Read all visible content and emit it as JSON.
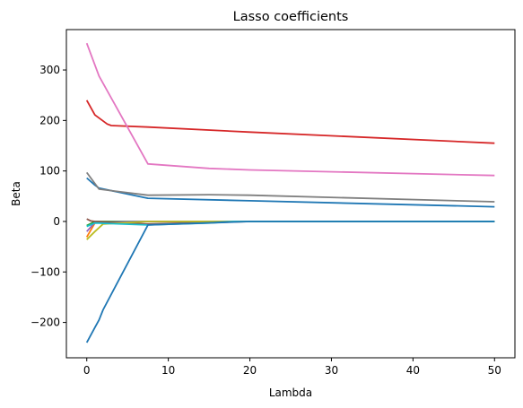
{
  "chart_data": {
    "type": "line",
    "title": "Lasso coefficients",
    "xlabel": "Lambda",
    "ylabel": "Beta",
    "xlim": [
      -2.5,
      52.5
    ],
    "ylim": [
      -270,
      380
    ],
    "xticks": [
      0,
      10,
      20,
      30,
      40,
      50
    ],
    "yticks": [
      -200,
      -100,
      0,
      100,
      200,
      300
    ],
    "grid": false,
    "legend": "none",
    "series": [
      {
        "color": "#1f77b4",
        "x": [
          0,
          1,
          1.5,
          7.5,
          20,
          50
        ],
        "y": [
          86,
          72,
          66,
          46,
          41,
          29
        ]
      },
      {
        "color": "#ff7f0e",
        "x": [
          0,
          1,
          7.5,
          20,
          50
        ],
        "y": [
          -31,
          -3,
          0,
          0,
          0
        ]
      },
      {
        "color": "#2ca02c",
        "x": [
          0,
          1,
          7.5,
          20,
          50
        ],
        "y": [
          -8,
          0,
          0,
          0,
          0
        ]
      },
      {
        "color": "#d62728",
        "x": [
          0,
          1,
          2.5,
          3,
          7.5,
          20,
          50
        ],
        "y": [
          240,
          211,
          193,
          190,
          187,
          177,
          155
        ]
      },
      {
        "color": "#9467bd",
        "x": [
          0,
          1,
          7.5,
          20,
          50
        ],
        "y": [
          -20,
          -2,
          0,
          0,
          0
        ]
      },
      {
        "color": "#8c564b",
        "x": [
          0,
          0.5,
          1,
          7.5,
          20,
          50
        ],
        "y": [
          5,
          1,
          0,
          -5,
          0,
          0
        ]
      },
      {
        "color": "#e377c2",
        "x": [
          0,
          1.5,
          7.5,
          15,
          20,
          50
        ],
        "y": [
          353,
          288,
          114,
          105,
          102,
          91
        ]
      },
      {
        "color": "#7f7f7f",
        "x": [
          0,
          1.5,
          7.5,
          15,
          20,
          50
        ],
        "y": [
          97,
          64,
          52,
          53,
          52,
          39
        ]
      },
      {
        "color": "#bcbd22",
        "x": [
          0,
          1,
          2,
          7.5,
          20,
          50
        ],
        "y": [
          -36,
          -20,
          -5,
          0,
          0,
          0
        ]
      },
      {
        "color": "#17becf",
        "x": [
          0,
          1,
          7.5,
          15,
          18,
          50
        ],
        "y": [
          -10,
          -3,
          -7,
          -3,
          0,
          0
        ]
      },
      {
        "color": "#1f77b4",
        "x": [
          0,
          1,
          1.5,
          2,
          7.5,
          20,
          50
        ],
        "y": [
          -240,
          -210,
          -195,
          -175,
          -7,
          0,
          0
        ]
      }
    ]
  }
}
